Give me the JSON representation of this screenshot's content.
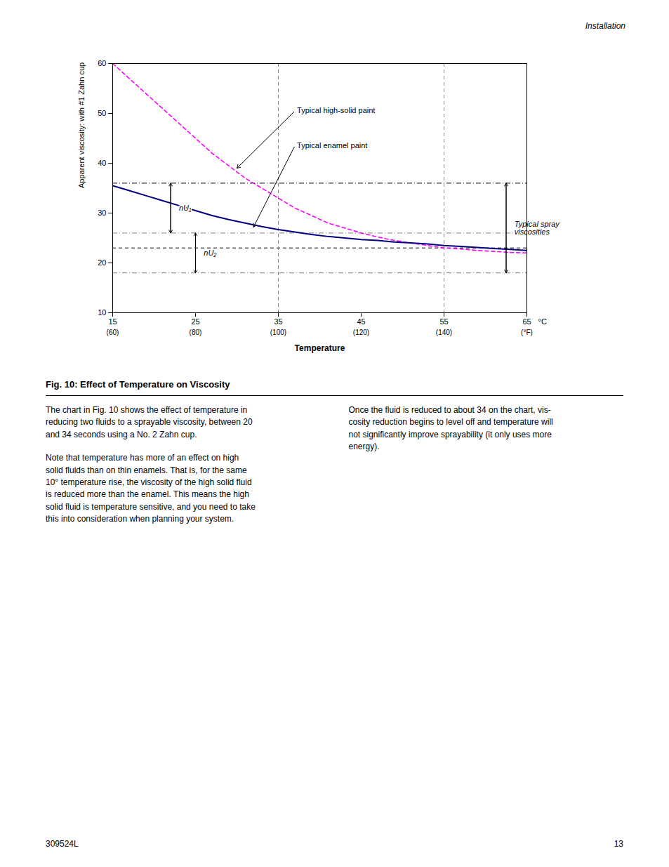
{
  "chart_data": {
    "type": "line",
    "title": "Fig. 10: Effect of Temperature on Viscosity",
    "xlabel": "Temperature",
    "ylabel": "Apparent viscosity: with #1 Zahn cup",
    "xlim": [
      15,
      65
    ],
    "ylim": [
      10,
      60
    ],
    "xticks": [
      15,
      25,
      35,
      45,
      55,
      65
    ],
    "yticks": [
      10,
      20,
      30,
      40,
      50,
      60
    ],
    "x_secondary_labels": [
      "(60)",
      "(80)",
      "(100)",
      "(120)",
      "(140)",
      "(°F)"
    ],
    "x_unit_label": "°C",
    "grid": false,
    "x": [
      15,
      17,
      19,
      21,
      23,
      25,
      27,
      29,
      31,
      33,
      35,
      37,
      39,
      41,
      43,
      45,
      47,
      49,
      51,
      53,
      55,
      57,
      59,
      61,
      63,
      65
    ],
    "series": [
      {
        "name": "Typical high-solid paint",
        "color": "#FF00FF",
        "line_style": "dashed",
        "values": [
          60,
          57,
          54,
          51,
          48,
          45,
          42,
          39.5,
          37,
          35,
          33,
          31,
          29.5,
          28,
          27,
          26,
          25.2,
          24.5,
          24,
          23.5,
          23,
          22.8,
          22.5,
          22.3,
          22.1,
          22
        ]
      },
      {
        "name": "Typical enamel paint",
        "color": "#000080",
        "line_style": "solid",
        "values": [
          35.5,
          34.5,
          33.5,
          32.5,
          31.5,
          30.5,
          29.5,
          28.7,
          28,
          27.3,
          26.7,
          26.2,
          25.7,
          25.3,
          25,
          24.7,
          24.5,
          24.2,
          24,
          23.8,
          23.5,
          23.3,
          23.1,
          22.9,
          22.7,
          22.5
        ]
      }
    ],
    "hlines": [
      {
        "value": 36,
        "color": "black",
        "line_style": "dashdot"
      },
      {
        "value": 26,
        "color": "gray",
        "line_style": "dashdot"
      },
      {
        "value": 23,
        "color": "black",
        "line_style": "dashed"
      },
      {
        "value": 18,
        "color": "gray",
        "line_style": "dashdot"
      }
    ],
    "vlines": [
      {
        "value": 35,
        "color": "gray",
        "line_style": "dashed"
      },
      {
        "value": 55,
        "color": "gray",
        "line_style": "dashed"
      }
    ],
    "annotations": [
      {
        "text": "Typical high-solid paint",
        "x": 37,
        "y": 50.5,
        "arrow_x": 30,
        "arrow_y": 39.0
      },
      {
        "text": "Typical enamel paint",
        "x": 37,
        "y": 43.5,
        "arrow_x": 32,
        "arrow_y": 27.2
      }
    ],
    "spans": [
      {
        "text": "nU₁",
        "x": 22,
        "from": 36,
        "to": 26,
        "text_x": 23,
        "text_y": 31
      },
      {
        "text": "nU₂",
        "x": 25,
        "from": 26,
        "to": 18,
        "text_x": 26,
        "text_y": 22
      },
      {
        "text": "Typical spray\nviscosities",
        "x": 62.5,
        "from": 36,
        "to": 18,
        "text_x": 63.5,
        "text_y": 27
      }
    ]
  },
  "page_header": "Installation",
  "body_left": [
    "The chart in Fig. 10 shows the effect of temperature in\nreducing two fluids to a sprayable viscosity, between 20\nand 34 seconds using a No. 2 Zahn cup.",
    "Note that temperature has more of an effect on high\nsolid fluids than on thin enamels. That is, for the same\n10° temperature rise, the viscosity of the high solid fluid\nis reduced more than the enamel. This means the high\nsolid fluid is temperature sensitive, and you need to take\nthis into consideration when planning your system."
  ],
  "body_right": [
    "Once the fluid is reduced to about 34 on the chart, vis-\ncosity reduction begins to level off and temperature will\nnot significantly improve sprayability (it only uses more\nenergy)."
  ],
  "page_footer_left": "309524L",
  "page_footer_right": "13"
}
